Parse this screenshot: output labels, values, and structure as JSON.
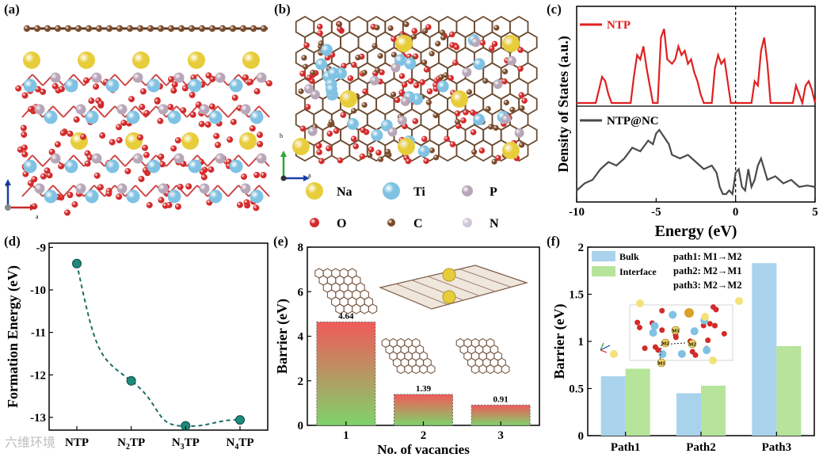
{
  "panels": {
    "a": {
      "label": "(a)",
      "axis_c": "c",
      "axis_a": "a"
    },
    "b": {
      "label": "(b)",
      "axis_b": "b",
      "axis_a": "a",
      "legend": [
        {
          "name": "Na",
          "color": "#e8cd3a"
        },
        {
          "name": "Ti",
          "color": "#7fc2e3"
        },
        {
          "name": "P",
          "color": "#b7a6b8"
        },
        {
          "name": "O",
          "color": "#d42a2a"
        },
        {
          "name": "C",
          "color": "#7a4a2a"
        },
        {
          "name": "N",
          "color": "#cfc6d8"
        }
      ]
    },
    "c": {
      "label": "(c)"
    },
    "d": {
      "label": "(d)"
    },
    "e": {
      "label": "(e)"
    },
    "f": {
      "label": "(f)"
    }
  },
  "chart_data": [
    {
      "id": "c",
      "type": "line",
      "title": "",
      "xlabel": "Energy (eV)",
      "ylabel": "Density of States (a.u.)",
      "xlim": [
        -10,
        5
      ],
      "xticks": [
        "-10",
        "-5",
        "0",
        "5"
      ],
      "series": [
        {
          "name": "NTP",
          "color": "#e02020",
          "x": [
            -10,
            -8.8,
            -8.6,
            -8.4,
            -8.2,
            -8.0,
            -7.8,
            -7.4,
            -6.6,
            -6.4,
            -6.2,
            -6.0,
            -5.8,
            -5.6,
            -5.4,
            -5.2,
            -4.9,
            -4.7,
            -4.5,
            -4.3,
            -4.0,
            -3.8,
            -3.6,
            -3.4,
            -3.2,
            -3.0,
            -2.8,
            -2.6,
            -2.4,
            -2.2,
            -2.0,
            -1.5,
            -1.3,
            -1.1,
            -0.9,
            -0.7,
            -0.5,
            -0.3,
            0.0,
            1.0,
            1.2,
            1.4,
            1.6,
            1.8,
            2.0,
            2.2,
            3.0,
            3.2,
            3.6,
            3.8,
            4.0,
            4.2,
            4.4,
            4.6,
            4.8,
            5.0
          ],
          "y": [
            0,
            0,
            0.15,
            0.3,
            0.25,
            0.1,
            0,
            0,
            0,
            0.3,
            0.55,
            0.5,
            0.65,
            0.4,
            0.2,
            0,
            0,
            0.75,
            0.85,
            0.5,
            0.45,
            0.5,
            0.65,
            0.55,
            0.6,
            0.45,
            0.5,
            0.35,
            0.25,
            0.1,
            0,
            0,
            0.4,
            0.55,
            0.45,
            0.5,
            0.25,
            0,
            0,
            0,
            0.25,
            0.2,
            0.6,
            0.75,
            0.45,
            0,
            0,
            0,
            0,
            0.2,
            0.1,
            0,
            0.2,
            0.25,
            0.15,
            0
          ]
        },
        {
          "name": "NTP@NC",
          "color": "#4a4a4a",
          "x": [
            -10,
            -9.5,
            -9,
            -8.5,
            -8,
            -7.5,
            -7,
            -6.5,
            -6,
            -5.5,
            -5.2,
            -5,
            -4.8,
            -4.5,
            -4.2,
            -4,
            -3.5,
            -3,
            -2.5,
            -2,
            -1.5,
            -1.2,
            -1,
            -0.8,
            -0.6,
            -0.4,
            -0.2,
            0,
            0.2,
            0.4,
            0.6,
            0.8,
            1,
            1.2,
            1.4,
            1.6,
            1.8,
            2,
            2.5,
            3,
            3.5,
            4,
            4.5,
            5
          ],
          "y": [
            0.05,
            0.15,
            0.2,
            0.35,
            0.45,
            0.4,
            0.5,
            0.65,
            0.6,
            0.75,
            0.7,
            0.85,
            0.9,
            0.8,
            0.7,
            0.55,
            0.5,
            0.55,
            0.45,
            0.35,
            0.4,
            0.3,
            0.1,
            0.0,
            0.0,
            0.05,
            0.0,
            0.3,
            0.35,
            0.1,
            0.05,
            0.35,
            0.1,
            0.2,
            0.4,
            0.5,
            0.35,
            0.2,
            0.25,
            0.15,
            0.2,
            0.1,
            0.12,
            0.1
          ]
        }
      ]
    },
    {
      "id": "d",
      "type": "scatter",
      "ylabel": "Formation Energy (eV)",
      "categories": [
        "NTP",
        "N2TP",
        "N3TP",
        "N4TP"
      ],
      "category_labels": [
        {
          "base": "N",
          "sub": "",
          "rest": "TP"
        },
        {
          "base": "N",
          "sub": "2",
          "rest": "TP"
        },
        {
          "base": "N",
          "sub": "3",
          "rest": "TP"
        },
        {
          "base": "N",
          "sub": "4",
          "rest": "TP"
        }
      ],
      "values": [
        -9.38,
        -12.14,
        -13.2,
        -13.06
      ],
      "ylim": [
        -13.3,
        -8.9
      ],
      "yticks": [
        -9,
        -10,
        -11,
        -12,
        -13
      ],
      "color": "#1d8a7e"
    },
    {
      "id": "e",
      "type": "bar",
      "xlabel": "No. of vacancies",
      "ylabel": "Barrier (eV)",
      "categories": [
        "1",
        "2",
        "3"
      ],
      "values": [
        4.64,
        1.39,
        0.91
      ],
      "value_labels": [
        "4.64",
        "1.39",
        "0.91"
      ],
      "ylim": [
        0,
        8
      ],
      "yticks": [
        0,
        2,
        4,
        6,
        8
      ]
    },
    {
      "id": "f",
      "type": "bar",
      "ylabel": "Barrier (eV)",
      "categories": [
        "Path1",
        "Path2",
        "Path3"
      ],
      "series": [
        {
          "name": "Bulk",
          "color": "#a9d3ec",
          "values": [
            0.63,
            0.45,
            1.83
          ]
        },
        {
          "name": "Interface",
          "color": "#b6e49a",
          "values": [
            0.71,
            0.53,
            0.95
          ]
        }
      ],
      "ylim": [
        0,
        2
      ],
      "yticks": [
        "0",
        "0.5",
        "1",
        "1.5",
        "2"
      ],
      "annotations": [
        "path1: M1→M2",
        "path2: M2→M1",
        "path3: M2→M2"
      ],
      "inset_labels": [
        "M1",
        "M2",
        "M2",
        "M1"
      ]
    }
  ],
  "watermark": "六维环境"
}
